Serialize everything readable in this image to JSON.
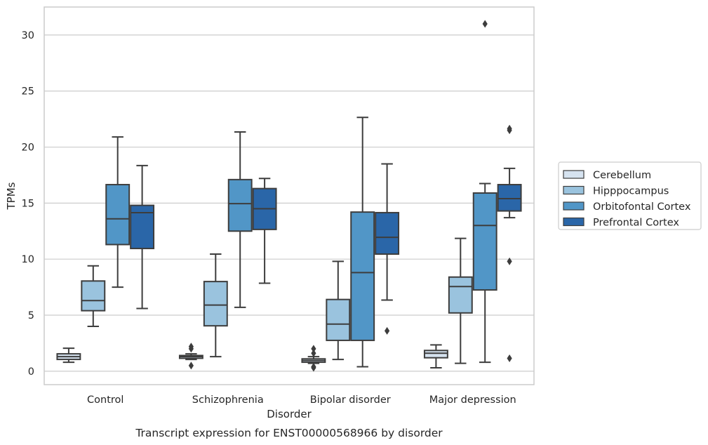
{
  "chart_data": {
    "type": "box",
    "title": "Transcript expression for ENST00000568966 by disorder",
    "xlabel": "Disorder",
    "ylabel": "TPMs",
    "ylim": [
      -1.2,
      32.5
    ],
    "yticks": [
      0,
      5,
      10,
      15,
      20,
      25,
      30
    ],
    "grid": "horizontal",
    "legend_position": "right",
    "categories": [
      "Control",
      "Schizophrenia",
      "Bipolar disorder",
      "Major depression"
    ],
    "series": [
      {
        "name": "Cerebellum",
        "color": "#d6e3f0",
        "boxes": [
          {
            "whisker_low": 0.8,
            "q1": 1.05,
            "median": 1.3,
            "q3": 1.55,
            "whisker_high": 2.05,
            "outliers": []
          },
          {
            "whisker_low": 1.05,
            "q1": 1.15,
            "median": 1.3,
            "q3": 1.4,
            "whisker_high": 1.55,
            "outliers": [
              0.5,
              2.0,
              2.2
            ]
          },
          {
            "whisker_low": 0.7,
            "q1": 0.8,
            "median": 0.95,
            "q3": 1.1,
            "whisker_high": 1.3,
            "outliers": [
              0.3,
              0.4,
              1.6,
              2.0
            ]
          },
          {
            "whisker_low": 0.3,
            "q1": 1.2,
            "median": 1.6,
            "q3": 1.85,
            "whisker_high": 2.35,
            "outliers": []
          }
        ]
      },
      {
        "name": "Hipppocampus",
        "color": "#9ac3de",
        "boxes": [
          {
            "whisker_low": 4.0,
            "q1": 5.4,
            "median": 6.3,
            "q3": 8.05,
            "whisker_high": 9.4,
            "outliers": []
          },
          {
            "whisker_low": 1.3,
            "q1": 4.05,
            "median": 5.9,
            "q3": 8.0,
            "whisker_high": 10.45,
            "outliers": []
          },
          {
            "whisker_low": 1.05,
            "q1": 2.75,
            "median": 4.2,
            "q3": 6.4,
            "whisker_high": 9.8,
            "outliers": []
          },
          {
            "whisker_low": 0.7,
            "q1": 5.2,
            "median": 7.55,
            "q3": 8.4,
            "whisker_high": 11.85,
            "outliers": []
          }
        ]
      },
      {
        "name": "Orbitofontal Cortex",
        "color": "#5196c7",
        "boxes": [
          {
            "whisker_low": 7.5,
            "q1": 11.3,
            "median": 13.6,
            "q3": 16.65,
            "whisker_high": 20.9,
            "outliers": []
          },
          {
            "whisker_low": 5.7,
            "q1": 12.5,
            "median": 14.95,
            "q3": 17.1,
            "whisker_high": 21.35,
            "outliers": []
          },
          {
            "whisker_low": 0.4,
            "q1": 2.75,
            "median": 8.8,
            "q3": 14.2,
            "whisker_high": 22.65,
            "outliers": []
          },
          {
            "whisker_low": 0.8,
            "q1": 7.25,
            "median": 13.0,
            "q3": 15.9,
            "whisker_high": 16.75,
            "outliers": [
              31.0
            ]
          }
        ]
      },
      {
        "name": "Prefrontal Cortex",
        "color": "#2a66a8",
        "boxes": [
          {
            "whisker_low": 5.6,
            "q1": 10.95,
            "median": 14.15,
            "q3": 14.8,
            "whisker_high": 18.35,
            "outliers": []
          },
          {
            "whisker_low": 7.85,
            "q1": 12.65,
            "median": 14.5,
            "q3": 16.3,
            "whisker_high": 17.2,
            "outliers": []
          },
          {
            "whisker_low": 6.35,
            "q1": 10.45,
            "median": 11.95,
            "q3": 14.15,
            "whisker_high": 18.5,
            "outliers": [
              3.6
            ]
          },
          {
            "whisker_low": 13.7,
            "q1": 14.3,
            "median": 15.4,
            "q3": 16.65,
            "whisker_high": 18.1,
            "outliers": [
              1.15,
              9.8,
              21.5,
              21.65
            ]
          }
        ]
      }
    ]
  }
}
